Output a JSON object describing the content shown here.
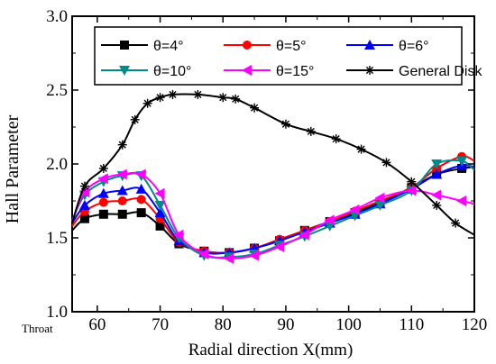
{
  "chart_data": {
    "type": "line",
    "title": "",
    "xlabel": "Radial direction X(mm)",
    "ylabel": "Hall Parameter",
    "xlim": [
      56,
      120
    ],
    "ylim": [
      1.0,
      3.0
    ],
    "xticks": [
      60,
      70,
      80,
      90,
      100,
      110,
      120
    ],
    "yticks": [
      1.0,
      1.5,
      2.0,
      2.5,
      3.0
    ],
    "ytick_labels": [
      "1.0",
      "1.5",
      "2.0",
      "2.5",
      "3.0"
    ],
    "throat_label": "Throat",
    "grid": false,
    "legend": "top, 3 columns, framed",
    "series": [
      {
        "name": "θ=4°",
        "color": "#000000",
        "marker": "square",
        "x": [
          56,
          58,
          61,
          64,
          67,
          70,
          73,
          77,
          81,
          85,
          89,
          93,
          97,
          101,
          105,
          110,
          114,
          118,
          120
        ],
        "y": [
          1.55,
          1.63,
          1.66,
          1.66,
          1.67,
          1.58,
          1.46,
          1.41,
          1.4,
          1.43,
          1.48,
          1.55,
          1.61,
          1.67,
          1.74,
          1.84,
          1.93,
          1.97,
          1.98
        ]
      },
      {
        "name": "θ=5°",
        "color": "#ff0000",
        "marker": "circle",
        "x": [
          56,
          58,
          61,
          64,
          67,
          70,
          73,
          77,
          81,
          85,
          89,
          93,
          97,
          101,
          105,
          110,
          114,
          118,
          120
        ],
        "y": [
          1.58,
          1.68,
          1.74,
          1.75,
          1.76,
          1.63,
          1.47,
          1.41,
          1.4,
          1.43,
          1.49,
          1.55,
          1.61,
          1.68,
          1.75,
          1.84,
          1.97,
          2.05,
          2.02
        ]
      },
      {
        "name": "θ=6°",
        "color": "#0000ff",
        "marker": "triangle-up",
        "x": [
          56,
          58,
          61,
          64,
          67,
          70,
          73,
          77,
          81,
          85,
          89,
          93,
          97,
          101,
          105,
          110,
          114,
          118,
          120
        ],
        "y": [
          1.6,
          1.72,
          1.8,
          1.82,
          1.83,
          1.67,
          1.48,
          1.4,
          1.4,
          1.43,
          1.48,
          1.54,
          1.6,
          1.66,
          1.73,
          1.83,
          1.93,
          1.99,
          1.98
        ]
      },
      {
        "name": "θ=10°",
        "color": "#008b8b",
        "marker": "triangle-down",
        "x": [
          56,
          58,
          61,
          64,
          67,
          70,
          73,
          77,
          81,
          85,
          89,
          93,
          97,
          101,
          105,
          110,
          114,
          118,
          120
        ],
        "y": [
          1.62,
          1.79,
          1.88,
          1.92,
          1.92,
          1.72,
          1.5,
          1.38,
          1.37,
          1.39,
          1.45,
          1.51,
          1.58,
          1.65,
          1.72,
          1.82,
          2.0,
          2.02,
          1.96
        ]
      },
      {
        "name": "θ=15°",
        "color": "#ff00ff",
        "marker": "triangle-left",
        "x": [
          56,
          58,
          61,
          64,
          67,
          70,
          73,
          77,
          81,
          85,
          89,
          93,
          97,
          101,
          105,
          110,
          114,
          118,
          120
        ],
        "y": [
          1.61,
          1.81,
          1.9,
          1.93,
          1.93,
          1.8,
          1.52,
          1.39,
          1.36,
          1.38,
          1.44,
          1.52,
          1.62,
          1.69,
          1.77,
          1.82,
          1.79,
          1.75,
          1.73
        ]
      },
      {
        "name": "General Disk",
        "color": "#000000",
        "marker": "star",
        "x": [
          56,
          58,
          61,
          64,
          66,
          68,
          70,
          72,
          76,
          80,
          82,
          85,
          90,
          94,
          98,
          102,
          106,
          110,
          114,
          117,
          120
        ],
        "y": [
          1.6,
          1.85,
          1.97,
          2.13,
          2.3,
          2.41,
          2.45,
          2.47,
          2.47,
          2.45,
          2.44,
          2.38,
          2.27,
          2.22,
          2.17,
          2.1,
          2.01,
          1.88,
          1.72,
          1.6,
          1.52
        ]
      }
    ]
  }
}
